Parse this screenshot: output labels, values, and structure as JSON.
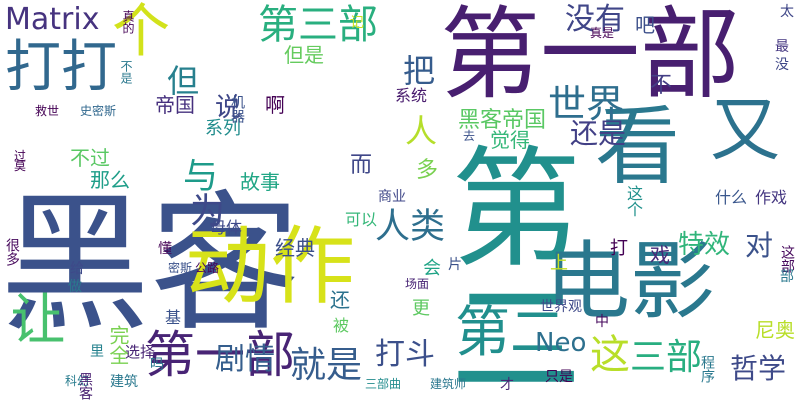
{
  "words": [
    {
      "text": "黑客",
      "color": "#3b528b",
      "vertical": false
    },
    {
      "text": "第一部",
      "color": "#481f70",
      "vertical": false
    },
    {
      "text": "第二",
      "color": "#21908d",
      "vertical": true
    },
    {
      "text": "动作",
      "color": "#d7e219",
      "vertical": false
    },
    {
      "text": "电影",
      "color": "#2a788e",
      "vertical": false
    },
    {
      "text": "看",
      "color": "#2a788e",
      "vertical": false
    },
    {
      "text": "个",
      "color": "#d2e21b",
      "vertical": false
    },
    {
      "text": "又",
      "color": "#2c728e",
      "vertical": false
    },
    {
      "text": "打打",
      "color": "#31688e",
      "vertical": false
    },
    {
      "text": "第三部",
      "color": "#29af7f",
      "vertical": false
    },
    {
      "text": "Matrix",
      "color": "#46337f",
      "vertical": false
    },
    {
      "text": "说",
      "color": "#3f4788",
      "vertical": false
    },
    {
      "text": "啊",
      "color": "#440154",
      "vertical": false
    },
    {
      "text": "没有",
      "color": "#404688",
      "vertical": false
    },
    {
      "text": "吧",
      "color": "#3c4f8a",
      "vertical": false
    },
    {
      "text": "世界",
      "color": "#2e6e8e",
      "vertical": false
    },
    {
      "text": "但",
      "color": "#27808e",
      "vertical": false
    },
    {
      "text": "把",
      "color": "#365c8d",
      "vertical": false
    },
    {
      "text": "人",
      "color": "#b5de2b",
      "vertical": false
    },
    {
      "text": "与",
      "color": "#1e9b8a",
      "vertical": false
    },
    {
      "text": "为",
      "color": "#3e4989",
      "vertical": false
    },
    {
      "text": "人类",
      "color": "#2e6f8e",
      "vertical": false
    },
    {
      "text": "让",
      "color": "#48c16e",
      "vertical": true
    },
    {
      "text": "第一部",
      "color": "#482475",
      "vertical": false
    },
    {
      "text": "剧情",
      "color": "#355e8d",
      "vertical": false
    },
    {
      "text": "就是",
      "color": "#365d8d",
      "vertical": false
    },
    {
      "text": "打斗",
      "color": "#3c508b",
      "vertical": false
    },
    {
      "text": "第二",
      "color": "#218f8d",
      "vertical": false
    },
    {
      "text": "三部",
      "color": "#28ae80",
      "vertical": false
    },
    {
      "text": "这",
      "color": "#b8de29",
      "vertical": false
    },
    {
      "text": "Neo",
      "color": "#2d708e",
      "vertical": false
    },
    {
      "text": "哲学",
      "color": "#3e4a89",
      "vertical": false
    },
    {
      "text": "对",
      "color": "#3b528b",
      "vertical": false
    },
    {
      "text": "特效",
      "color": "#31b57b",
      "vertical": false
    },
    {
      "text": "戏",
      "color": "#482878",
      "vertical": false
    },
    {
      "text": "还是",
      "color": "#424086",
      "vertical": false
    },
    {
      "text": "黑客帝国",
      "color": "#5ac864",
      "vertical": false
    },
    {
      "text": "尼奥",
      "color": "#b8de29",
      "vertical": false
    },
    {
      "text": "不",
      "color": "#433e85",
      "vertical": false
    },
    {
      "text": "帝国",
      "color": "#46307e",
      "vertical": false
    },
    {
      "text": "系统",
      "color": "#481b6d",
      "vertical": false
    },
    {
      "text": "系列",
      "color": "#228d8d",
      "vertical": false
    },
    {
      "text": "但是",
      "color": "#65cb5e",
      "vertical": false
    },
    {
      "text": "故事",
      "color": "#21a685",
      "vertical": false
    },
    {
      "text": "经典",
      "color": "#3c4f8a",
      "vertical": false
    },
    {
      "text": "不过",
      "color": "#5ac864",
      "vertical": false
    },
    {
      "text": "那么",
      "color": "#1f9e89",
      "vertical": false
    },
    {
      "text": "母体",
      "color": "#3e4989",
      "vertical": false
    },
    {
      "text": "可以",
      "color": "#35b779",
      "vertical": false
    },
    {
      "text": "商业",
      "color": "#3f4788",
      "vertical": false
    },
    {
      "text": "多",
      "color": "#7ad151",
      "vertical": false
    },
    {
      "text": "而",
      "color": "#3f4788",
      "vertical": false
    },
    {
      "text": "觉得",
      "color": "#35b779",
      "vertical": false
    },
    {
      "text": "这个",
      "color": "#21918c",
      "vertical": true
    },
    {
      "text": "什么",
      "color": "#39568c",
      "vertical": false
    },
    {
      "text": "作戏",
      "color": "#453781",
      "vertical": false
    },
    {
      "text": "打",
      "color": "#440154",
      "vertical": false
    },
    {
      "text": "会",
      "color": "#20a486",
      "vertical": false
    },
    {
      "text": "片",
      "color": "#3b528b",
      "vertical": false
    },
    {
      "text": "上",
      "color": "#c2df23",
      "vertical": false
    },
    {
      "text": "还",
      "color": "#2c728e",
      "vertical": false
    },
    {
      "text": "被",
      "color": "#5ec962",
      "vertical": false
    },
    {
      "text": "更",
      "color": "#5ec962",
      "vertical": false
    },
    {
      "text": "基",
      "color": "#3b528b",
      "vertical": false
    },
    {
      "text": "完全",
      "color": "#7ad151",
      "vertical": true
    },
    {
      "text": "选择",
      "color": "#482475",
      "vertical": false
    },
    {
      "text": "科幻",
      "color": "#287c8e",
      "vertical": false
    },
    {
      "text": "建筑",
      "color": "#2a788e",
      "vertical": false
    },
    {
      "text": "里",
      "color": "#26828e",
      "vertical": false
    },
    {
      "text": "中",
      "color": "#46085c",
      "vertical": false
    },
    {
      "text": "世界观",
      "color": "#3e4989",
      "vertical": false
    },
    {
      "text": "三部曲",
      "color": "#228c8d",
      "vertical": false
    },
    {
      "text": "建筑师",
      "color": "#2a778e",
      "vertical": false
    },
    {
      "text": "只是",
      "color": "#440154",
      "vertical": false
    },
    {
      "text": "程序",
      "color": "#2a788e",
      "vertical": true
    },
    {
      "text": "才",
      "color": "#482475",
      "vertical": false
    },
    {
      "text": "很多",
      "color": "#46085c",
      "vertical": true
    },
    {
      "text": "给",
      "color": "#3e4989",
      "vertical": false
    },
    {
      "text": "做",
      "color": "#2a788e",
      "vertical": false
    },
    {
      "text": "场面",
      "color": "#482475",
      "vertical": false
    },
    {
      "text": "密斯",
      "color": "#3b528b",
      "vertical": false
    },
    {
      "text": "公路",
      "color": "#46085c",
      "vertical": false
    },
    {
      "text": "懂",
      "color": "#440154",
      "vertical": false
    },
    {
      "text": "真是",
      "color": "#440154",
      "vertical": false
    },
    {
      "text": "最",
      "color": "#453781",
      "vertical": false
    },
    {
      "text": "没",
      "color": "#3f4788",
      "vertical": false
    },
    {
      "text": "太",
      "color": "#3f4788",
      "vertical": false
    },
    {
      "text": "救世",
      "color": "#440154",
      "vertical": false
    },
    {
      "text": "史密斯",
      "color": "#31688e",
      "vertical": false
    },
    {
      "text": "机器",
      "color": "#3b528b",
      "vertical": true
    },
    {
      "text": "不是",
      "color": "#2a788e",
      "vertical": true
    },
    {
      "text": "莫",
      "color": "#440154",
      "vertical": false
    },
    {
      "text": "真的",
      "color": "#440154",
      "vertical": true
    },
    {
      "text": "这部",
      "color": "#46085c",
      "vertical": true
    },
    {
      "text": "去",
      "color": "#3b528b",
      "vertical": false
    },
    {
      "text": "过",
      "color": "#440154",
      "vertical": false
    },
    {
      "text": "吗",
      "color": "#2a788e",
      "vertical": false
    },
    {
      "text": "部",
      "color": "#2a788e",
      "vertical": false
    },
    {
      "text": "记",
      "color": "#c8e020",
      "vertical": false
    },
    {
      "text": "黑客",
      "color": "#481f70",
      "vertical": true
    }
  ]
}
